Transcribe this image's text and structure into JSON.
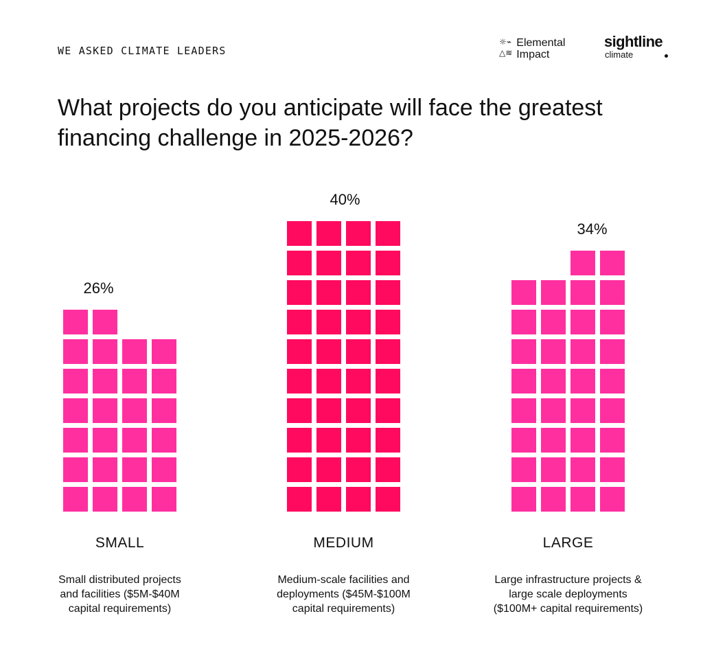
{
  "header": {
    "kicker": "WE ASKED CLIMATE LEADERS",
    "title": "What projects do you anticipate will face the greatest financing challenge in 2025-2026?"
  },
  "logos": {
    "elemental": {
      "line1": "Elemental",
      "line2": "Impact",
      "icon_row1": "☼⌁",
      "icon_row2": "△≋"
    },
    "sightline": {
      "word": "sightline",
      "sub": "climate"
    }
  },
  "chart_data": {
    "type": "bar",
    "style": "waffle",
    "title": "What projects do you anticipate will face the greatest financing challenge in 2025-2026?",
    "categories": [
      "SMALL",
      "MEDIUM",
      "LARGE"
    ],
    "values": [
      26,
      40,
      34
    ],
    "value_labels": [
      "26%",
      "40%",
      "34%"
    ],
    "descriptions": [
      "Small distributed projects and facilities ($5M-$40M capital requirements)",
      "Medium-scale facilities and deployments ($45M-$100M capital requirements)",
      "Large infrastructure projects & large scale deployments ($100M+ capital requirements)"
    ],
    "description_lines": [
      [
        "Small distributed projects",
        "and facilities ($5M-$40M",
        "capital requirements)"
      ],
      [
        "Medium-scale facilities and",
        "deployments ($45M-$100M",
        "capital requirements)"
      ],
      [
        "Large infrastructure projects &",
        "large scale deployments",
        "($100M+ capital requirements)"
      ]
    ],
    "columns_per_bar": 4,
    "colors": [
      "#ff2fa0",
      "#ff0a5e",
      "#ff2fa0"
    ],
    "grid": false,
    "legend": "none"
  }
}
